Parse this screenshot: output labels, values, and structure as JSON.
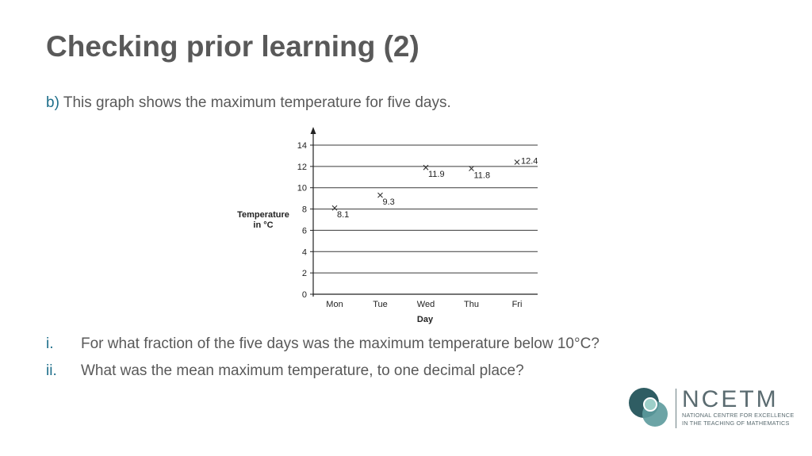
{
  "slide": {
    "title": "Checking prior learning (2)",
    "intro_label": "b)",
    "intro_text": " This graph shows the maximum temperature for five days.",
    "questions": [
      {
        "num": "i.",
        "text": "For what fraction of the five days was the maximum temperature below 10°C?"
      },
      {
        "num": "ii.",
        "text": "What was the mean maximum temperature, to one decimal place?"
      }
    ]
  },
  "logo": {
    "name": "NCETM",
    "line1": "NATIONAL CENTRE FOR EXCELLENCE",
    "line2": "IN THE TEACHING OF MATHEMATICS",
    "colors": {
      "dark": "#2f5d63",
      "mid": "#5c9a9c",
      "light": "#9dcfc9"
    }
  },
  "chart_data": {
    "type": "scatter",
    "categories": [
      "Mon",
      "Tue",
      "Wed",
      "Thu",
      "Fri"
    ],
    "values": [
      8.1,
      9.3,
      11.9,
      11.8,
      12.4
    ],
    "data_labels": [
      "8.1",
      "9.3",
      "11.9",
      "11.8",
      "12.4"
    ],
    "xlabel": "Day",
    "ylabel_lines": [
      "Temperature",
      "in °C"
    ],
    "yticks": [
      "0",
      "2",
      "4",
      "6",
      "8",
      "10",
      "12",
      "14"
    ],
    "ylim": [
      0,
      14
    ],
    "grid": true,
    "marker": "x"
  }
}
